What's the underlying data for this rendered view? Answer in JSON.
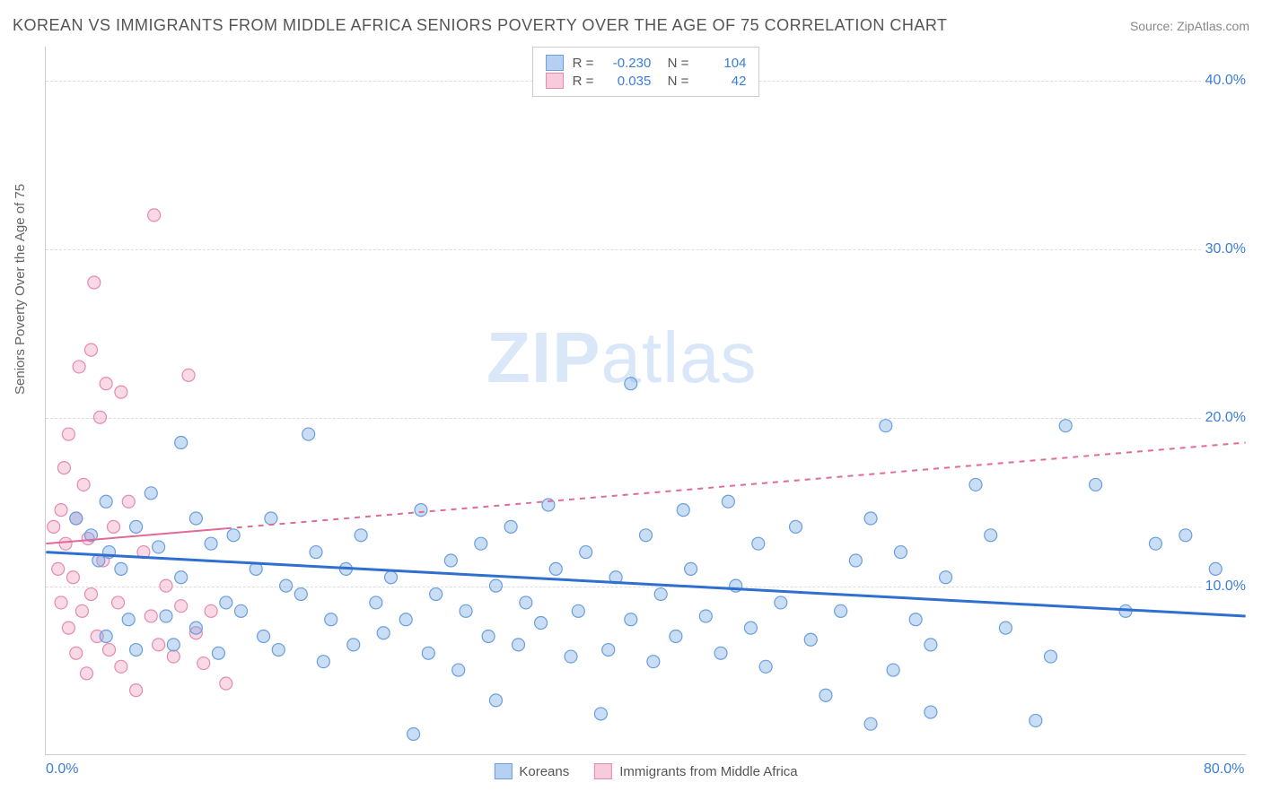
{
  "header": {
    "title": "KOREAN VS IMMIGRANTS FROM MIDDLE AFRICA SENIORS POVERTY OVER THE AGE OF 75 CORRELATION CHART",
    "source": "Source: ZipAtlas.com"
  },
  "chart": {
    "type": "scatter",
    "ylabel": "Seniors Poverty Over the Age of 75",
    "xlim": [
      0,
      80
    ],
    "ylim": [
      0,
      42
    ],
    "yticks": [
      10,
      20,
      30,
      40
    ],
    "ytick_labels": [
      "10.0%",
      "20.0%",
      "30.0%",
      "40.0%"
    ],
    "xticks": [
      0,
      80
    ],
    "xtick_labels": [
      "0.0%",
      "80.0%"
    ],
    "background_color": "#ffffff",
    "grid_color": "#dddddd",
    "marker_radius": 7,
    "marker_stroke_width": 1.2,
    "series": {
      "blue": {
        "label": "Koreans",
        "R": "-0.230",
        "N": "104",
        "fill": "rgba(120,170,230,0.40)",
        "stroke": "#6a9edc",
        "points": [
          [
            2,
            14
          ],
          [
            3,
            13
          ],
          [
            3.5,
            11.5
          ],
          [
            4,
            15
          ],
          [
            4,
            7
          ],
          [
            4.2,
            12
          ],
          [
            5,
            11
          ],
          [
            5.5,
            8
          ],
          [
            6,
            13.5
          ],
          [
            6,
            6.2
          ],
          [
            7,
            15.5
          ],
          [
            7.5,
            12.3
          ],
          [
            8,
            8.2
          ],
          [
            8.5,
            6.5
          ],
          [
            9,
            18.5
          ],
          [
            9,
            10.5
          ],
          [
            10,
            14
          ],
          [
            10,
            7.5
          ],
          [
            11,
            12.5
          ],
          [
            11.5,
            6
          ],
          [
            12,
            9
          ],
          [
            12.5,
            13
          ],
          [
            13,
            8.5
          ],
          [
            14,
            11
          ],
          [
            14.5,
            7
          ],
          [
            15,
            14
          ],
          [
            15.5,
            6.2
          ],
          [
            16,
            10
          ],
          [
            17,
            9.5
          ],
          [
            17.5,
            19
          ],
          [
            18,
            12
          ],
          [
            18.5,
            5.5
          ],
          [
            19,
            8
          ],
          [
            20,
            11
          ],
          [
            20.5,
            6.5
          ],
          [
            21,
            13
          ],
          [
            22,
            9
          ],
          [
            22.5,
            7.2
          ],
          [
            23,
            10.5
          ],
          [
            24,
            8
          ],
          [
            24.5,
            1.2
          ],
          [
            25,
            14.5
          ],
          [
            25.5,
            6
          ],
          [
            26,
            9.5
          ],
          [
            27,
            11.5
          ],
          [
            27.5,
            5
          ],
          [
            28,
            8.5
          ],
          [
            29,
            12.5
          ],
          [
            29.5,
            7
          ],
          [
            30,
            10
          ],
          [
            30,
            3.2
          ],
          [
            31,
            13.5
          ],
          [
            31.5,
            6.5
          ],
          [
            32,
            9
          ],
          [
            33,
            7.8
          ],
          [
            33.5,
            14.8
          ],
          [
            34,
            11
          ],
          [
            35,
            5.8
          ],
          [
            35.5,
            8.5
          ],
          [
            36,
            12
          ],
          [
            37,
            2.4
          ],
          [
            37.5,
            6.2
          ],
          [
            38,
            10.5
          ],
          [
            39,
            22
          ],
          [
            39,
            8
          ],
          [
            40,
            13
          ],
          [
            40.5,
            5.5
          ],
          [
            41,
            9.5
          ],
          [
            42,
            7
          ],
          [
            42.5,
            14.5
          ],
          [
            43,
            11
          ],
          [
            44,
            8.2
          ],
          [
            45,
            6
          ],
          [
            45.5,
            15
          ],
          [
            46,
            10
          ],
          [
            47,
            7.5
          ],
          [
            47.5,
            12.5
          ],
          [
            48,
            5.2
          ],
          [
            49,
            9
          ],
          [
            50,
            13.5
          ],
          [
            51,
            6.8
          ],
          [
            52,
            3.5
          ],
          [
            53,
            8.5
          ],
          [
            54,
            11.5
          ],
          [
            55,
            1.8
          ],
          [
            55,
            14
          ],
          [
            56,
            19.5
          ],
          [
            56.5,
            5
          ],
          [
            57,
            12
          ],
          [
            58,
            8
          ],
          [
            59,
            6.5
          ],
          [
            59,
            2.5
          ],
          [
            60,
            10.5
          ],
          [
            62,
            16
          ],
          [
            63,
            13
          ],
          [
            64,
            7.5
          ],
          [
            66,
            2
          ],
          [
            67,
            5.8
          ],
          [
            68,
            19.5
          ],
          [
            70,
            16
          ],
          [
            72,
            8.5
          ],
          [
            74,
            12.5
          ],
          [
            76,
            13
          ],
          [
            78,
            11
          ]
        ],
        "trend": {
          "y_at_x0": 12.0,
          "y_at_x80": 8.2,
          "solid_until_x": 80,
          "color": "#2f6fd0",
          "width": 3
        }
      },
      "pink": {
        "label": "Immigrants from Middle Africa",
        "R": "0.035",
        "N": "42",
        "fill": "rgba(240,160,190,0.40)",
        "stroke": "#e48ab0",
        "points": [
          [
            0.5,
            13.5
          ],
          [
            0.8,
            11
          ],
          [
            1,
            14.5
          ],
          [
            1,
            9
          ],
          [
            1.2,
            17
          ],
          [
            1.3,
            12.5
          ],
          [
            1.5,
            19
          ],
          [
            1.5,
            7.5
          ],
          [
            1.8,
            10.5
          ],
          [
            2,
            14
          ],
          [
            2,
            6
          ],
          [
            2.2,
            23
          ],
          [
            2.4,
            8.5
          ],
          [
            2.5,
            16
          ],
          [
            2.7,
            4.8
          ],
          [
            2.8,
            12.8
          ],
          [
            3,
            24
          ],
          [
            3,
            9.5
          ],
          [
            3.2,
            28
          ],
          [
            3.4,
            7
          ],
          [
            3.6,
            20
          ],
          [
            3.8,
            11.5
          ],
          [
            4,
            22
          ],
          [
            4.2,
            6.2
          ],
          [
            4.5,
            13.5
          ],
          [
            4.8,
            9
          ],
          [
            5,
            21.5
          ],
          [
            5,
            5.2
          ],
          [
            5.5,
            15
          ],
          [
            6,
            3.8
          ],
          [
            6.5,
            12
          ],
          [
            7,
            8.2
          ],
          [
            7.2,
            32
          ],
          [
            7.5,
            6.5
          ],
          [
            8,
            10
          ],
          [
            8.5,
            5.8
          ],
          [
            9,
            8.8
          ],
          [
            9.5,
            22.5
          ],
          [
            10,
            7.2
          ],
          [
            10.5,
            5.4
          ],
          [
            11,
            8.5
          ],
          [
            12,
            4.2
          ]
        ],
        "trend": {
          "y_at_x0": 12.5,
          "y_at_x80": 18.5,
          "solid_until_x": 12,
          "color": "#e06a9a",
          "width": 2
        }
      }
    }
  },
  "legend_bottom": {
    "items": [
      {
        "color": "blue",
        "label": "Koreans"
      },
      {
        "color": "pink",
        "label": "Immigrants from Middle Africa"
      }
    ]
  },
  "watermark": {
    "zip": "ZIP",
    "atlas": "atlas"
  }
}
